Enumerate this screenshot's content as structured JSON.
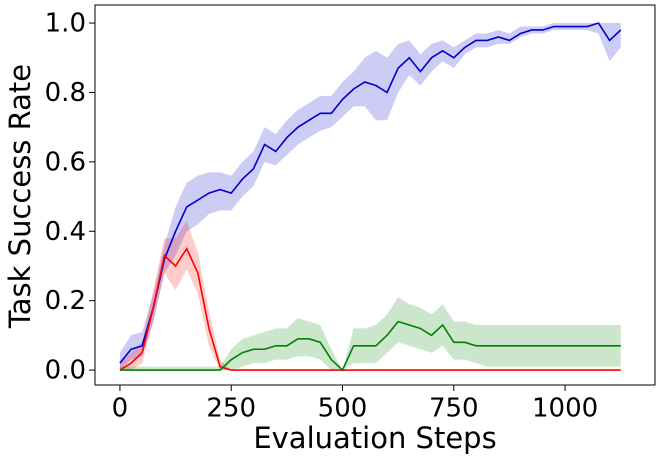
{
  "chart_data": {
    "type": "line",
    "xlabel": "Evaluation Steps",
    "ylabel": "Task Success Rate",
    "x": [
      0,
      25,
      50,
      75,
      100,
      125,
      150,
      175,
      200,
      225,
      250,
      275,
      300,
      325,
      350,
      375,
      400,
      425,
      450,
      475,
      500,
      525,
      550,
      575,
      600,
      625,
      650,
      675,
      700,
      725,
      750,
      775,
      800,
      825,
      850,
      875,
      900,
      925,
      950,
      975,
      1000,
      1025,
      1050,
      1075,
      1100,
      1125
    ],
    "series": [
      {
        "color": "#0000cc",
        "values": [
          0.02,
          0.06,
          0.07,
          0.18,
          0.32,
          0.4,
          0.47,
          0.49,
          0.51,
          0.52,
          0.51,
          0.55,
          0.58,
          0.65,
          0.63,
          0.67,
          0.7,
          0.72,
          0.74,
          0.74,
          0.78,
          0.81,
          0.83,
          0.82,
          0.8,
          0.87,
          0.9,
          0.86,
          0.9,
          0.92,
          0.9,
          0.93,
          0.95,
          0.95,
          0.96,
          0.95,
          0.97,
          0.98,
          0.98,
          0.99,
          0.99,
          0.99,
          0.99,
          1.0,
          0.95,
          0.98
        ],
        "lower": [
          0.0,
          0.03,
          0.04,
          0.14,
          0.28,
          0.33,
          0.4,
          0.42,
          0.45,
          0.46,
          0.46,
          0.5,
          0.53,
          0.6,
          0.59,
          0.62,
          0.65,
          0.67,
          0.69,
          0.7,
          0.73,
          0.76,
          0.76,
          0.72,
          0.72,
          0.8,
          0.85,
          0.82,
          0.86,
          0.89,
          0.87,
          0.91,
          0.93,
          0.93,
          0.94,
          0.94,
          0.96,
          0.97,
          0.97,
          0.98,
          0.98,
          0.98,
          0.98,
          0.97,
          0.89,
          0.93
        ],
        "upper": [
          0.05,
          0.1,
          0.11,
          0.22,
          0.36,
          0.47,
          0.54,
          0.56,
          0.57,
          0.57,
          0.56,
          0.6,
          0.63,
          0.7,
          0.68,
          0.72,
          0.75,
          0.77,
          0.79,
          0.79,
          0.83,
          0.86,
          0.9,
          0.92,
          0.9,
          0.94,
          0.95,
          0.91,
          0.94,
          0.95,
          0.93,
          0.95,
          0.97,
          0.97,
          0.98,
          0.97,
          0.99,
          0.99,
          0.99,
          1.0,
          1.0,
          1.0,
          1.0,
          1.0,
          1.0,
          1.0
        ]
      },
      {
        "color": "#ff0000",
        "values": [
          0.0,
          0.02,
          0.05,
          0.18,
          0.33,
          0.3,
          0.35,
          0.28,
          0.12,
          0.01,
          0,
          0,
          0,
          0,
          0,
          0,
          0,
          0,
          0,
          0,
          0,
          0,
          0,
          0,
          0,
          0,
          0,
          0,
          0,
          0,
          0,
          0,
          0,
          0,
          0,
          0,
          0,
          0,
          0,
          0,
          0,
          0,
          0,
          0,
          0,
          0
        ],
        "lower": [
          0,
          0,
          0.02,
          0.14,
          0.28,
          0.23,
          0.29,
          0.22,
          0.07,
          0,
          0,
          0,
          0,
          0,
          0,
          0,
          0,
          0,
          0,
          0,
          0,
          0,
          0,
          0,
          0,
          0,
          0,
          0,
          0,
          0,
          0,
          0,
          0,
          0,
          0,
          0,
          0,
          0,
          0,
          0,
          0,
          0,
          0,
          0,
          0,
          0
        ],
        "upper": [
          0.02,
          0.05,
          0.08,
          0.23,
          0.38,
          0.38,
          0.43,
          0.34,
          0.17,
          0.03,
          0,
          0,
          0,
          0,
          0,
          0,
          0,
          0,
          0,
          0,
          0,
          0,
          0,
          0,
          0,
          0,
          0,
          0,
          0,
          0,
          0,
          0,
          0,
          0,
          0,
          0,
          0,
          0,
          0,
          0,
          0,
          0,
          0,
          0,
          0,
          0
        ]
      },
      {
        "color": "#008000",
        "values": [
          0,
          0,
          0,
          0,
          0,
          0,
          0,
          0,
          0,
          0,
          0.03,
          0.05,
          0.06,
          0.06,
          0.07,
          0.07,
          0.09,
          0.09,
          0.08,
          0.03,
          0.0,
          0.07,
          0.07,
          0.07,
          0.1,
          0.14,
          0.13,
          0.12,
          0.1,
          0.13,
          0.08,
          0.08,
          0.07,
          0.07,
          0.07,
          0.07,
          0.07,
          0.07,
          0.07,
          0.07,
          0.07,
          0.07,
          0.07,
          0.07,
          0.07,
          0.07
        ],
        "lower": [
          0,
          0,
          0,
          0,
          0,
          0,
          0,
          0,
          0,
          0,
          0.0,
          0.01,
          0.02,
          0.02,
          0.03,
          0.03,
          0.04,
          0.04,
          0.03,
          0.0,
          0.0,
          0.02,
          0.02,
          0.02,
          0.05,
          0.08,
          0.07,
          0.06,
          0.05,
          0.07,
          0.03,
          0.03,
          0.02,
          0.01,
          0.01,
          0.01,
          0.01,
          0.01,
          0.01,
          0.01,
          0.01,
          0.01,
          0.01,
          0.01,
          0.01,
          0.01
        ],
        "upper": [
          0.01,
          0.01,
          0.01,
          0.01,
          0.01,
          0.01,
          0.01,
          0.01,
          0.01,
          0.01,
          0.06,
          0.09,
          0.1,
          0.11,
          0.12,
          0.12,
          0.15,
          0.14,
          0.13,
          0.06,
          0.0,
          0.12,
          0.12,
          0.13,
          0.16,
          0.21,
          0.19,
          0.18,
          0.16,
          0.19,
          0.14,
          0.14,
          0.13,
          0.13,
          0.13,
          0.13,
          0.13,
          0.13,
          0.13,
          0.13,
          0.13,
          0.13,
          0.13,
          0.13,
          0.13,
          0.13
        ]
      }
    ],
    "xlim": [
      -56,
      1202
    ],
    "ylim": [
      -0.043,
      1.052
    ],
    "xticks": [
      0,
      250,
      500,
      750,
      1000
    ],
    "yticks": [
      {
        "value": 0,
        "label": "0.0"
      },
      {
        "value": 0.2,
        "label": "0.2"
      },
      {
        "value": 0.4,
        "label": "0.4"
      },
      {
        "value": 0.6,
        "label": "0.6"
      },
      {
        "value": 0.8,
        "label": "0.8"
      },
      {
        "value": 1,
        "label": "1.0"
      }
    ],
    "grid": false
  }
}
